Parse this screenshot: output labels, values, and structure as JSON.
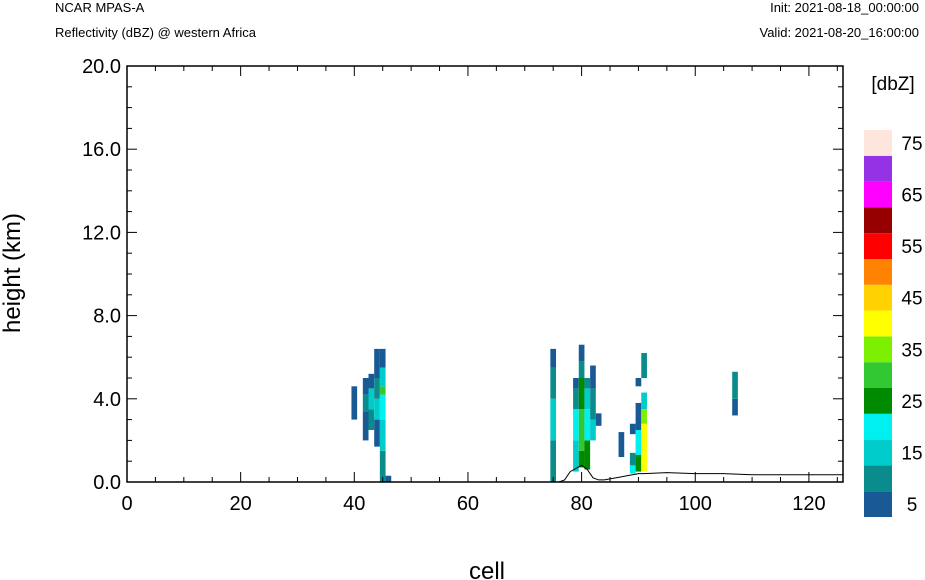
{
  "header": {
    "model": "NCAR MPAS-A",
    "field": "Reflectivity (dBZ) @ western Africa",
    "init": "Init: 2021-08-18_00:00:00",
    "valid": "Valid: 2021-08-20_16:00:00"
  },
  "chart_data": {
    "type": "heatmap",
    "xlabel": "cell",
    "ylabel": "height (km)",
    "xlim": [
      0,
      126
    ],
    "ylim": [
      0,
      20
    ],
    "x_ticks": [
      "0",
      "20",
      "40",
      "60",
      "80",
      "100",
      "120"
    ],
    "x_tick_values": [
      0,
      20,
      40,
      60,
      80,
      100,
      120
    ],
    "y_ticks": [
      "0.0",
      "4.0",
      "8.0",
      "12.0",
      "16.0",
      "20.0"
    ],
    "y_tick_values": [
      0,
      4,
      8,
      12,
      16,
      20
    ],
    "colorbar": {
      "unit": "[dbZ]",
      "levels": [
        5,
        10,
        15,
        20,
        25,
        30,
        35,
        40,
        45,
        50,
        55,
        60,
        65,
        70,
        75
      ],
      "labels": [
        "5",
        "15",
        "25",
        "35",
        "45",
        "55",
        "65",
        "75"
      ],
      "colors": [
        "#1a5a94",
        "#0a8c8c",
        "#00cccc",
        "#00f0f0",
        "#008a00",
        "#32c832",
        "#7cf000",
        "#ffff00",
        "#ffd200",
        "#ff8200",
        "#ff0000",
        "#960000",
        "#ff00ff",
        "#9632e6",
        "#ffe6dc"
      ]
    },
    "terrain": [
      [
        0,
        0
      ],
      [
        40,
        0
      ],
      [
        75,
        0
      ],
      [
        76,
        0
      ],
      [
        77,
        0.1
      ],
      [
        78,
        0.5
      ],
      [
        80,
        0.8
      ],
      [
        81,
        0.6
      ],
      [
        82,
        0.2
      ],
      [
        83,
        0.1
      ],
      [
        84,
        0.1
      ],
      [
        86,
        0.2
      ],
      [
        88,
        0.3
      ],
      [
        90,
        0.4
      ],
      [
        91,
        0.4
      ],
      [
        95,
        0.45
      ],
      [
        100,
        0.4
      ],
      [
        105,
        0.4
      ],
      [
        110,
        0.35
      ],
      [
        115,
        0.35
      ],
      [
        120,
        0.35
      ],
      [
        126,
        0.35
      ]
    ],
    "columns": [
      {
        "x": 40,
        "cells": [
          [
            3.0,
            4.6,
            5
          ]
        ]
      },
      {
        "x": 42,
        "cells": [
          [
            2.0,
            3.4,
            5
          ],
          [
            3.4,
            4.2,
            10
          ],
          [
            4.2,
            5.0,
            5
          ]
        ]
      },
      {
        "x": 43,
        "cells": [
          [
            2.5,
            3.5,
            10
          ],
          [
            3.5,
            4.5,
            15
          ],
          [
            4.5,
            5.2,
            5
          ]
        ]
      },
      {
        "x": 44,
        "cells": [
          [
            1.7,
            3.0,
            5
          ],
          [
            3.0,
            4.0,
            15
          ],
          [
            4.0,
            5.0,
            10
          ],
          [
            5.0,
            6.4,
            5
          ]
        ]
      },
      {
        "x": 45,
        "cells": [
          [
            0.0,
            1.5,
            10
          ],
          [
            1.5,
            3.0,
            15
          ],
          [
            3.0,
            4.2,
            20
          ],
          [
            4.2,
            4.6,
            30
          ],
          [
            4.6,
            5.5,
            15
          ],
          [
            5.5,
            6.4,
            5
          ]
        ]
      },
      {
        "x": 46,
        "cells": [
          [
            0.0,
            0.3,
            5
          ]
        ]
      },
      {
        "x": 75,
        "cells": [
          [
            0.0,
            2.0,
            10
          ],
          [
            2.0,
            4.0,
            15
          ],
          [
            4.0,
            5.5,
            10
          ],
          [
            5.5,
            6.4,
            5
          ]
        ]
      },
      {
        "x": 79,
        "cells": [
          [
            0.5,
            2.0,
            15
          ],
          [
            2.0,
            3.5,
            20
          ],
          [
            3.5,
            4.5,
            10
          ],
          [
            4.5,
            5.0,
            5
          ]
        ]
      },
      {
        "x": 80,
        "cells": [
          [
            0.7,
            1.5,
            25
          ],
          [
            1.5,
            3.5,
            30
          ],
          [
            3.5,
            5.0,
            25
          ],
          [
            5.0,
            5.8,
            10
          ],
          [
            5.8,
            6.6,
            5
          ]
        ]
      },
      {
        "x": 81,
        "cells": [
          [
            0.6,
            2.0,
            25
          ],
          [
            2.0,
            3.5,
            20
          ],
          [
            3.5,
            4.5,
            15
          ],
          [
            4.5,
            5.0,
            10
          ]
        ]
      },
      {
        "x": 82,
        "cells": [
          [
            2.0,
            3.0,
            15
          ],
          [
            3.0,
            4.5,
            10
          ],
          [
            4.5,
            5.6,
            5
          ]
        ]
      },
      {
        "x": 83,
        "cells": [
          [
            2.7,
            3.3,
            5
          ]
        ]
      },
      {
        "x": 87,
        "cells": [
          [
            1.2,
            2.4,
            5
          ]
        ]
      },
      {
        "x": 89,
        "cells": [
          [
            0.4,
            0.8,
            20
          ],
          [
            0.8,
            1.4,
            10
          ],
          [
            2.3,
            2.8,
            5
          ]
        ]
      },
      {
        "x": 90,
        "cells": [
          [
            0.5,
            1.3,
            25
          ],
          [
            1.3,
            2.5,
            20
          ],
          [
            2.5,
            3.8,
            5
          ],
          [
            4.6,
            5.0,
            5
          ]
        ]
      },
      {
        "x": 91,
        "cells": [
          [
            0.5,
            2.8,
            40
          ],
          [
            2.8,
            3.5,
            35
          ],
          [
            3.5,
            4.3,
            15
          ],
          [
            5.0,
            6.2,
            10
          ]
        ]
      },
      {
        "x": 107,
        "cells": [
          [
            3.2,
            4.0,
            5
          ],
          [
            4.0,
            5.3,
            10
          ]
        ]
      }
    ]
  }
}
